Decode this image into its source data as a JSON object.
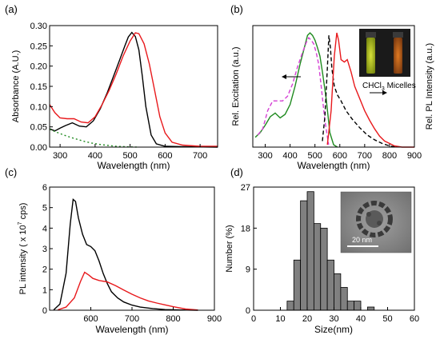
{
  "chart_data": [
    {
      "panel": "(a)",
      "type": "line",
      "xlabel": "Wavelength (nm)",
      "ylabel": "Absorbance (A.U.)",
      "xlim": [
        270,
        750
      ],
      "ylim": [
        0,
        0.3
      ],
      "xticks": [
        300,
        400,
        500,
        600,
        700
      ],
      "yticks": [
        0.0,
        0.05,
        0.1,
        0.15,
        0.2,
        0.25,
        0.3
      ],
      "ytick_labels": [
        "0.00",
        "0.05",
        "0.10",
        "0.15",
        "0.20",
        "0.25",
        "0.30"
      ],
      "series": [
        {
          "color": "#000000",
          "style": "solid",
          "x": [
            270,
            285,
            300,
            315,
            335,
            355,
            375,
            395,
            415,
            435,
            455,
            470,
            485,
            495,
            505,
            515,
            525,
            535,
            545,
            560,
            575,
            600,
            650,
            750
          ],
          "y": [
            0.045,
            0.04,
            0.047,
            0.053,
            0.06,
            0.052,
            0.05,
            0.065,
            0.095,
            0.135,
            0.18,
            0.215,
            0.25,
            0.272,
            0.283,
            0.273,
            0.24,
            0.175,
            0.1,
            0.03,
            0.008,
            0.002,
            0.001,
            0.0
          ]
        },
        {
          "color": "#e8191c",
          "style": "solid",
          "x": [
            270,
            285,
            300,
            320,
            340,
            360,
            380,
            400,
            420,
            440,
            460,
            480,
            500,
            515,
            525,
            540,
            555,
            570,
            585,
            600,
            620,
            650,
            700,
            750
          ],
          "y": [
            0.105,
            0.085,
            0.072,
            0.07,
            0.07,
            0.062,
            0.06,
            0.075,
            0.105,
            0.14,
            0.18,
            0.225,
            0.262,
            0.282,
            0.28,
            0.255,
            0.205,
            0.14,
            0.075,
            0.035,
            0.012,
            0.005,
            0.002,
            0.002
          ]
        },
        {
          "color": "#1f8a1f",
          "style": "dotted",
          "x": [
            270,
            290,
            310,
            330,
            350,
            370,
            390,
            410,
            430,
            460,
            490,
            520
          ],
          "y": [
            0.044,
            0.037,
            0.03,
            0.024,
            0.019,
            0.014,
            0.01,
            0.007,
            0.005,
            0.002,
            0.001,
            0.0
          ]
        }
      ]
    },
    {
      "panel": "(b)",
      "type": "line",
      "xlabel": "Wavelength (nm)",
      "ylabel_left": "Rel. Excitation (a.u.)",
      "ylabel_right": "Rel. PL Intensity (a.u.)",
      "xlim": [
        250,
        900
      ],
      "xticks": [
        300,
        400,
        500,
        600,
        700,
        800,
        900
      ],
      "ylim": [
        0,
        1
      ],
      "annotation": "CHCl3 Micelles",
      "series": [
        {
          "color": "#1f8a1f",
          "style": "solid",
          "x": [
            260,
            280,
            300,
            320,
            340,
            360,
            380,
            400,
            420,
            440,
            460,
            470,
            480,
            490,
            500,
            510,
            520,
            530,
            545,
            560,
            575,
            590
          ],
          "y": [
            0.08,
            0.12,
            0.18,
            0.25,
            0.28,
            0.24,
            0.27,
            0.35,
            0.5,
            0.68,
            0.84,
            0.92,
            0.94,
            0.92,
            0.88,
            0.82,
            0.75,
            0.62,
            0.4,
            0.12,
            0.02,
            0.0
          ]
        },
        {
          "color": "#d43fd4",
          "style": "dashed",
          "x": [
            270,
            290,
            310,
            330,
            350,
            370,
            390,
            410,
            430,
            450,
            465,
            475,
            485,
            495,
            505,
            515,
            525,
            540,
            555
          ],
          "y": [
            0.1,
            0.15,
            0.3,
            0.38,
            0.38,
            0.38,
            0.42,
            0.52,
            0.66,
            0.78,
            0.86,
            0.9,
            0.88,
            0.85,
            0.78,
            0.68,
            0.5,
            0.22,
            0.02
          ]
        },
        {
          "color": "#000000",
          "style": "dashed",
          "x": [
            530,
            540,
            550,
            556,
            562,
            568,
            578,
            590,
            605,
            625,
            650,
            680,
            710,
            740,
            770,
            800,
            830
          ],
          "y": [
            0.05,
            0.25,
            0.65,
            0.92,
            0.82,
            0.65,
            0.5,
            0.43,
            0.38,
            0.3,
            0.23,
            0.16,
            0.1,
            0.06,
            0.03,
            0.01,
            0.0
          ]
        },
        {
          "color": "#e8191c",
          "style": "solid",
          "x": [
            550,
            565,
            578,
            588,
            595,
            605,
            618,
            630,
            645,
            660,
            680,
            700,
            720,
            740,
            760,
            780,
            800,
            820,
            850,
            900
          ],
          "y": [
            0.02,
            0.3,
            0.75,
            0.94,
            0.88,
            0.72,
            0.7,
            0.72,
            0.62,
            0.5,
            0.4,
            0.3,
            0.22,
            0.15,
            0.09,
            0.05,
            0.03,
            0.01,
            0.0,
            0.0
          ]
        }
      ]
    },
    {
      "panel": "(c)",
      "type": "line",
      "xlabel": "Wavelength (nm)",
      "ylabel_pre": "PL intensity ( x 10",
      "ylabel_exp": "7",
      "ylabel_post": " cps)",
      "xlim": [
        500,
        900
      ],
      "ylim": [
        0,
        6
      ],
      "xticks": [
        600,
        700,
        800,
        900
      ],
      "yticks": [
        0,
        1,
        2,
        3,
        4,
        5,
        6
      ],
      "series": [
        {
          "color": "#000000",
          "style": "solid",
          "x": [
            510,
            525,
            540,
            550,
            557,
            563,
            570,
            580,
            590,
            600,
            610,
            620,
            630,
            640,
            650,
            665,
            680,
            700,
            720,
            750,
            780,
            820,
            860
          ],
          "y": [
            0.02,
            0.3,
            1.8,
            4.2,
            5.4,
            5.3,
            4.5,
            3.7,
            3.2,
            3.1,
            2.9,
            2.4,
            1.8,
            1.3,
            0.9,
            0.6,
            0.4,
            0.25,
            0.15,
            0.08,
            0.03,
            0.01,
            0.0
          ]
        },
        {
          "color": "#e8191c",
          "style": "solid",
          "x": [
            520,
            540,
            560,
            575,
            585,
            595,
            605,
            620,
            640,
            660,
            680,
            700,
            720,
            740,
            760,
            780,
            800,
            830,
            860
          ],
          "y": [
            0.02,
            0.15,
            0.6,
            1.4,
            1.85,
            1.72,
            1.55,
            1.45,
            1.38,
            1.2,
            0.98,
            0.78,
            0.6,
            0.45,
            0.35,
            0.26,
            0.17,
            0.06,
            0.01
          ]
        }
      ]
    },
    {
      "panel": "(d)",
      "type": "bar",
      "xlabel": "Size(nm)",
      "ylabel": "Number (%)",
      "xlim": [
        0,
        60
      ],
      "ylim": [
        0,
        27
      ],
      "xticks": [
        0,
        10,
        20,
        30,
        40,
        50,
        60
      ],
      "yticks": [
        0,
        9,
        18,
        27
      ],
      "bin_width": 2.5,
      "bin_starts": [
        12.5,
        15,
        17.5,
        20,
        22.5,
        25,
        27.5,
        30,
        32.5,
        35,
        37.5,
        40,
        42.5
      ],
      "values": [
        2,
        11,
        24,
        26,
        19,
        18,
        11,
        8,
        5,
        2,
        2,
        0,
        0.7
      ],
      "bar_color": "#808080",
      "inset_scale_label": "20 nm"
    }
  ],
  "panel_labels": [
    "(a)",
    "(b)",
    "(c)",
    "(d)"
  ]
}
